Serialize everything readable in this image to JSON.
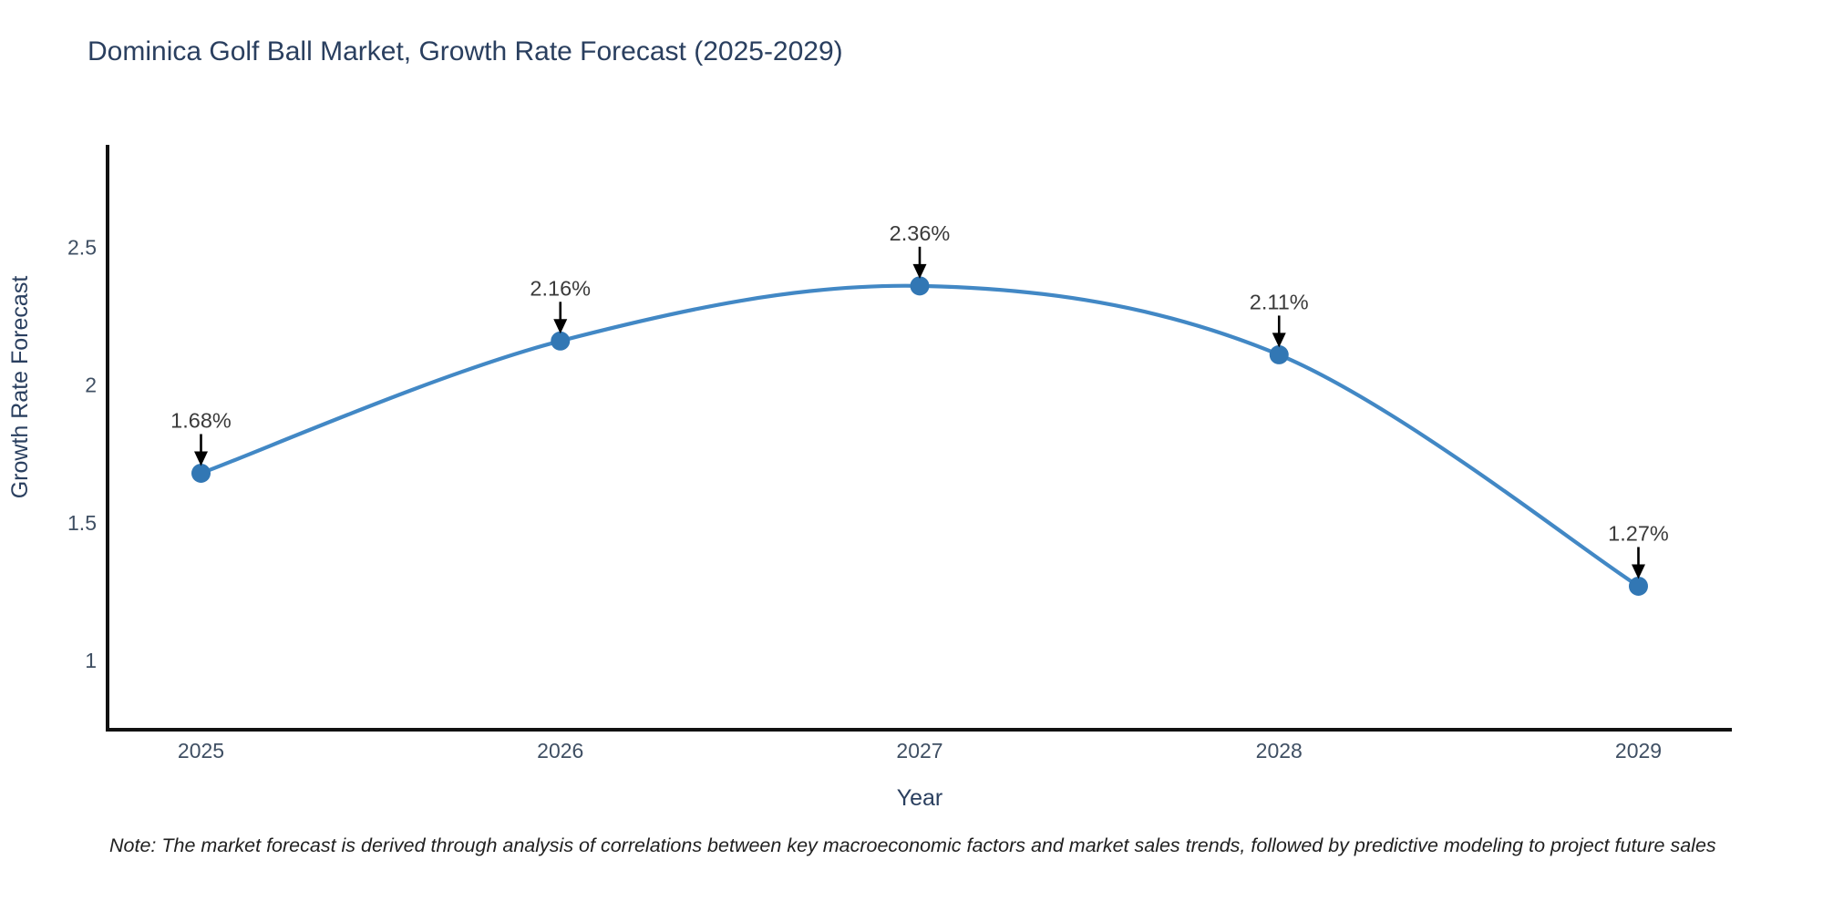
{
  "page": {
    "background": "#ffffff"
  },
  "title": {
    "text": "Dominica Golf Ball Market, Growth Rate Forecast (2025-2029)",
    "color": "#2a3f5f"
  },
  "note": {
    "text": "Note: The market forecast is derived through analysis of correlations between key macroeconomic factors and market sales trends, followed by predictive modeling to project future sales"
  },
  "chart_data": {
    "type": "line",
    "title": "Dominica Golf Ball Market, Growth Rate Forecast (2025-2029)",
    "xlabel": "Year",
    "ylabel": "Growth Rate Forecast",
    "x": [
      2025,
      2026,
      2027,
      2028,
      2029
    ],
    "series": [
      {
        "name": "Growth Rate Forecast",
        "values": [
          1.68,
          2.16,
          2.36,
          2.11,
          1.27
        ]
      }
    ],
    "point_labels": [
      "1.68%",
      "2.16%",
      "2.36%",
      "2.11%",
      "1.27%"
    ],
    "xtick_labels": [
      "2025",
      "2026",
      "2027",
      "2028",
      "2029"
    ],
    "ytick_values": [
      1,
      1.5,
      2,
      2.5
    ],
    "ytick_labels": [
      "1",
      "1.5",
      "2",
      "2.5"
    ],
    "xlim": [
      2024.74,
      2029.26
    ],
    "ylim": [
      0.749,
      2.872
    ],
    "grid": false,
    "legend": "none",
    "line_shape": "spline",
    "line_color": "#4288c5",
    "marker_color": "#3277b4",
    "axis_line_color": "#111111",
    "tick_label_color": "#3f4f63",
    "axis_title_color": "#2a3f5f",
    "annotation_text_color": "#3a3a3a",
    "annotation_arrow_color": "#000000"
  }
}
